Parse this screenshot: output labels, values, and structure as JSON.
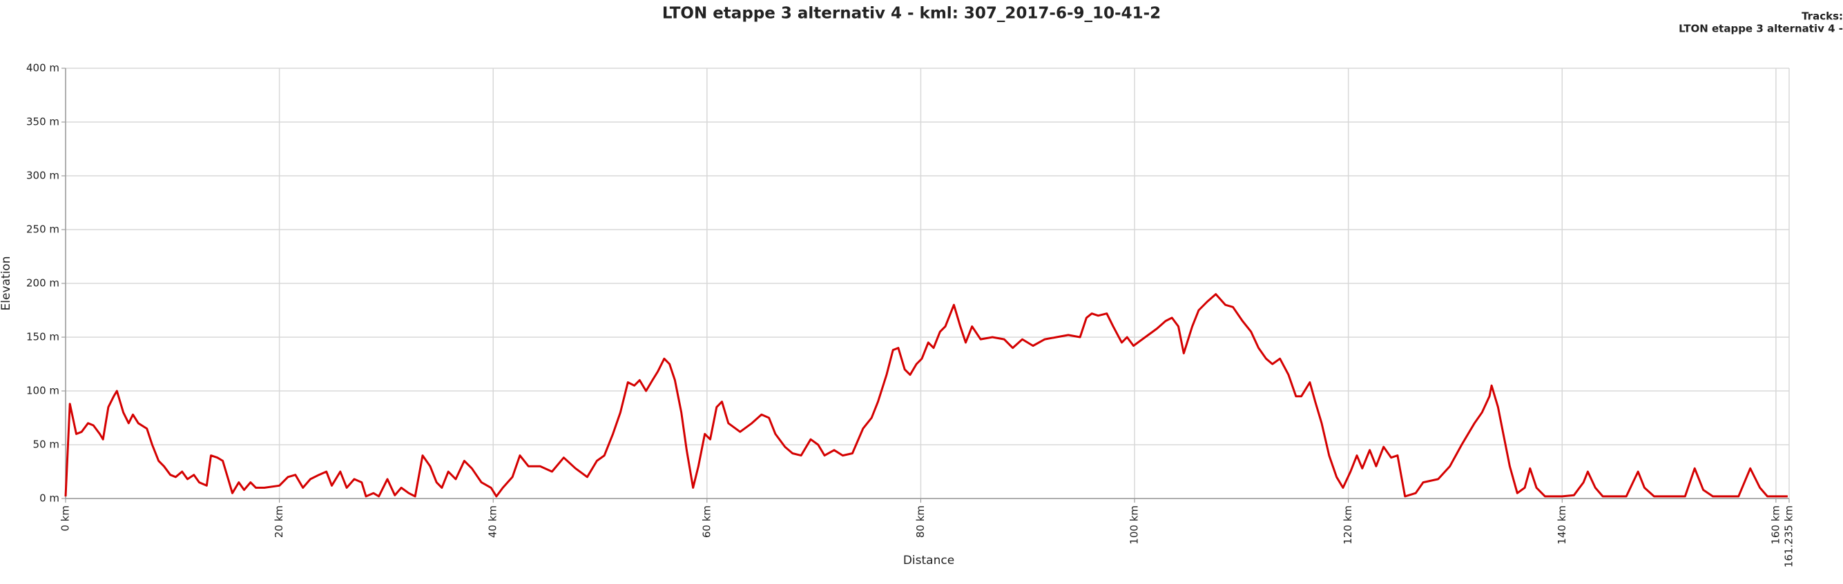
{
  "chart_data": {
    "type": "line",
    "title": "LTON etappe 3 alternativ 4 - kml: 307_2017-6-9_10-41-2",
    "legend_title": "Tracks:",
    "x_label": "Distance",
    "y_label": "Elevation",
    "xlim": [
      0,
      161.235
    ],
    "ylim": [
      0,
      400
    ],
    "xticks": [
      {
        "value": 0,
        "label": "0 km"
      },
      {
        "value": 20,
        "label": "20 km"
      },
      {
        "value": 40,
        "label": "40 km"
      },
      {
        "value": 60,
        "label": "60 km"
      },
      {
        "value": 80,
        "label": "80 km"
      },
      {
        "value": 100,
        "label": "100 km"
      },
      {
        "value": 120,
        "label": "120 km"
      },
      {
        "value": 140,
        "label": "140 km"
      },
      {
        "value": 160,
        "label": "160 km"
      },
      {
        "value": 161.235,
        "label": "161.235 km"
      }
    ],
    "yticks": [
      {
        "value": 0,
        "label": "0 m"
      },
      {
        "value": 50,
        "label": "50 m"
      },
      {
        "value": 100,
        "label": "100 m"
      },
      {
        "value": 150,
        "label": "150 m"
      },
      {
        "value": 200,
        "label": "200 m"
      },
      {
        "value": 250,
        "label": "250 m"
      },
      {
        "value": 300,
        "label": "300 m"
      },
      {
        "value": 350,
        "label": "350 m"
      },
      {
        "value": 400,
        "label": "400 m"
      }
    ],
    "grid": true,
    "x": [
      0,
      0.4,
      1,
      1.5,
      2.1,
      2.6,
      3.2,
      3.5,
      4,
      4.5,
      4.8,
      5.4,
      5.9,
      6.3,
      6.8,
      7.6,
      8.1,
      8.7,
      9.2,
      9.8,
      10.3,
      10.9,
      11.4,
      12,
      12.5,
      13.2,
      13.6,
      14.2,
      14.7,
      15.3,
      15.6,
      16.2,
      16.7,
      17.3,
      17.8,
      18.6,
      20,
      20.8,
      21.5,
      22.2,
      22.9,
      23.7,
      24.4,
      24.9,
      25.7,
      26.3,
      27,
      27.7,
      28.1,
      28.8,
      29.3,
      30.1,
      30.8,
      31.4,
      32.1,
      32.7,
      33.4,
      34.1,
      34.7,
      35.2,
      35.8,
      36.5,
      37.3,
      38,
      38.9,
      39.8,
      40.3,
      40.9,
      41.8,
      42.5,
      43.3,
      44.4,
      45.5,
      46.6,
      47.7,
      48.8,
      49.7,
      50.4,
      51.2,
      51.9,
      52.6,
      53.2,
      53.7,
      54.3,
      54.9,
      55.4,
      56,
      56.5,
      57,
      57.6,
      58.1,
      58.7,
      59.2,
      59.8,
      60.3,
      60.9,
      61.4,
      62,
      63.1,
      64.2,
      65.1,
      65.8,
      66.4,
      67.3,
      68,
      68.8,
      69.7,
      70.4,
      71,
      71.9,
      72.7,
      73.6,
      74.6,
      75.4,
      76,
      76.8,
      77.4,
      77.9,
      78.5,
      79,
      79.6,
      80.1,
      80.7,
      81.2,
      81.8,
      82.3,
      83.1,
      83.7,
      84.2,
      84.8,
      85.6,
      86.7,
      87.8,
      88.6,
      89.5,
      90.5,
      91.6,
      92.7,
      93.8,
      94.9,
      95.5,
      96,
      96.6,
      97.4,
      98,
      98.8,
      99.3,
      99.9,
      101,
      102.1,
      102.9,
      103.5,
      104.1,
      104.6,
      105.4,
      106,
      106.8,
      107.6,
      108.5,
      109.2,
      110.1,
      110.9,
      111.6,
      112.3,
      112.9,
      113.6,
      114.4,
      115.1,
      115.6,
      116.4,
      116.9,
      117.5,
      118.2,
      118.9,
      119.5,
      120.2,
      120.8,
      121.3,
      122,
      122.6,
      123.3,
      124,
      124.6,
      125.3,
      126.3,
      127,
      128.4,
      129.5,
      130.6,
      131.8,
      132.5,
      133.2,
      133.4,
      134,
      134.5,
      135.1,
      135.8,
      136.5,
      137,
      137.6,
      138.4,
      140,
      141.1,
      142,
      142.4,
      143.1,
      143.8,
      146,
      147.1,
      147.7,
      148.6,
      151.5,
      152.4,
      153.2,
      154.1,
      156.5,
      157.6,
      158.5,
      159.2,
      161.1
    ],
    "series": [
      {
        "name": "LTON etappe 3 alternativ 4 -",
        "color": "#d40000",
        "values": [
          2,
          88,
          60,
          62,
          70,
          68,
          60,
          55,
          85,
          95,
          100,
          80,
          70,
          78,
          70,
          65,
          50,
          35,
          30,
          22,
          20,
          25,
          18,
          22,
          15,
          12,
          40,
          38,
          35,
          15,
          5,
          15,
          8,
          15,
          10,
          10,
          12,
          20,
          22,
          10,
          18,
          22,
          25,
          12,
          25,
          10,
          18,
          15,
          2,
          5,
          2,
          18,
          3,
          10,
          5,
          2,
          40,
          30,
          15,
          10,
          25,
          18,
          35,
          28,
          15,
          10,
          2,
          10,
          20,
          40,
          30,
          30,
          25,
          38,
          28,
          20,
          35,
          40,
          60,
          80,
          108,
          105,
          110,
          100,
          110,
          118,
          130,
          125,
          110,
          80,
          45,
          10,
          30,
          60,
          55,
          85,
          90,
          70,
          62,
          70,
          78,
          75,
          60,
          48,
          42,
          40,
          55,
          50,
          40,
          45,
          40,
          42,
          65,
          75,
          90,
          115,
          138,
          140,
          120,
          115,
          125,
          130,
          145,
          140,
          155,
          160,
          180,
          160,
          145,
          160,
          148,
          150,
          148,
          140,
          148,
          142,
          148,
          150,
          152,
          150,
          168,
          172,
          170,
          172,
          160,
          145,
          150,
          142,
          150,
          158,
          165,
          168,
          160,
          135,
          160,
          175,
          183,
          190,
          180,
          178,
          165,
          155,
          140,
          130,
          125,
          130,
          115,
          95,
          95,
          108,
          90,
          70,
          40,
          20,
          10,
          25,
          40,
          28,
          45,
          30,
          48,
          38,
          40,
          2,
          5,
          15,
          18,
          30,
          50,
          70,
          80,
          95,
          105,
          85,
          60,
          30,
          5,
          10,
          28,
          10,
          2,
          2,
          3,
          15,
          25,
          10,
          2,
          2,
          25,
          10,
          2,
          2,
          28,
          8,
          2,
          2,
          28,
          10,
          2,
          2
        ]
      }
    ]
  }
}
